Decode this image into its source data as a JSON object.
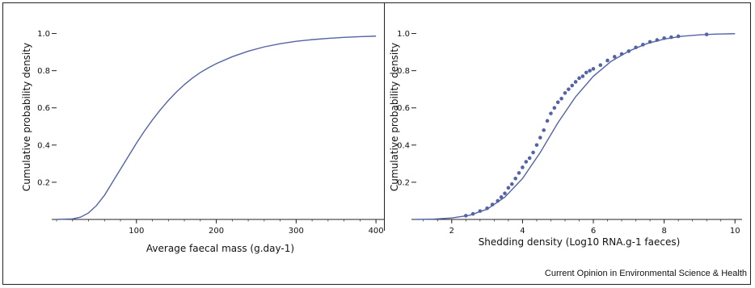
{
  "chart_data": [
    {
      "type": "line",
      "xlabel": "Average faecal mass (g.day-1)",
      "ylabel": "Cumulative probability density",
      "xlim": [
        0,
        410
      ],
      "ylim": [
        0,
        1.05
      ],
      "xticks": [
        100,
        200,
        300,
        400
      ],
      "yticks": [
        0.2,
        0.4,
        0.6,
        0.8,
        1.0
      ],
      "ytick_labels": [
        "0.2",
        "0.4",
        "0.6",
        "0.8",
        "1.0"
      ],
      "series": [
        {
          "style": "line",
          "color": "#5463a6",
          "x": [
            0,
            20,
            30,
            40,
            50,
            60,
            70,
            80,
            90,
            100,
            110,
            120,
            130,
            140,
            150,
            160,
            170,
            180,
            190,
            200,
            220,
            240,
            260,
            280,
            300,
            320,
            340,
            360,
            380,
            400
          ],
          "y": [
            0,
            0.003,
            0.012,
            0.035,
            0.075,
            0.13,
            0.2,
            0.27,
            0.34,
            0.41,
            0.475,
            0.535,
            0.59,
            0.64,
            0.685,
            0.725,
            0.76,
            0.79,
            0.815,
            0.838,
            0.875,
            0.905,
            0.928,
            0.945,
            0.958,
            0.967,
            0.974,
            0.979,
            0.983,
            0.986
          ]
        }
      ]
    },
    {
      "type": "scatter",
      "xlabel": "Shedding density (Log10 RNA.g-1 faeces)",
      "ylabel": "Cumulative probability density",
      "xlim": [
        1,
        10.2
      ],
      "ylim": [
        0,
        1.05
      ],
      "xticks": [
        2,
        4,
        6,
        8,
        10
      ],
      "yticks": [
        0.2,
        0.4,
        0.6,
        0.8,
        1.0
      ],
      "ytick_labels": [
        "0.2",
        "0.4",
        "0.6",
        "0.8",
        "1.0"
      ],
      "series": [
        {
          "style": "line",
          "color": "#5463a6",
          "x": [
            1.0,
            1.5,
            2.0,
            2.5,
            3.0,
            3.5,
            4.0,
            4.5,
            5.0,
            5.5,
            6.0,
            6.5,
            7.0,
            7.5,
            8.0,
            8.5,
            9.0,
            9.5,
            10.0
          ],
          "y": [
            0.0,
            0.002,
            0.008,
            0.022,
            0.055,
            0.12,
            0.22,
            0.36,
            0.52,
            0.66,
            0.77,
            0.85,
            0.905,
            0.945,
            0.97,
            0.985,
            0.993,
            0.997,
            0.999
          ]
        },
        {
          "style": "points",
          "color": "#5463a6",
          "x": [
            2.4,
            2.6,
            2.8,
            3.0,
            3.15,
            3.3,
            3.4,
            3.5,
            3.6,
            3.7,
            3.8,
            3.9,
            4.0,
            4.1,
            4.2,
            4.3,
            4.4,
            4.5,
            4.6,
            4.7,
            4.8,
            4.9,
            5.0,
            5.1,
            5.2,
            5.3,
            5.4,
            5.5,
            5.6,
            5.7,
            5.8,
            5.9,
            6.0,
            6.2,
            6.4,
            6.6,
            6.8,
            7.0,
            7.2,
            7.4,
            7.6,
            7.8,
            8.0,
            8.2,
            8.4,
            9.2
          ],
          "y": [
            0.02,
            0.03,
            0.045,
            0.06,
            0.08,
            0.1,
            0.12,
            0.14,
            0.17,
            0.19,
            0.22,
            0.25,
            0.28,
            0.31,
            0.33,
            0.36,
            0.4,
            0.44,
            0.48,
            0.53,
            0.57,
            0.6,
            0.63,
            0.65,
            0.68,
            0.7,
            0.72,
            0.74,
            0.76,
            0.77,
            0.79,
            0.8,
            0.81,
            0.83,
            0.855,
            0.875,
            0.89,
            0.905,
            0.925,
            0.94,
            0.955,
            0.965,
            0.975,
            0.98,
            0.985,
            0.995
          ]
        }
      ]
    }
  ],
  "source": "Current Opinion in Environmental Science & Health",
  "colors": {
    "series": "#5463a6",
    "axis": "#222222"
  }
}
